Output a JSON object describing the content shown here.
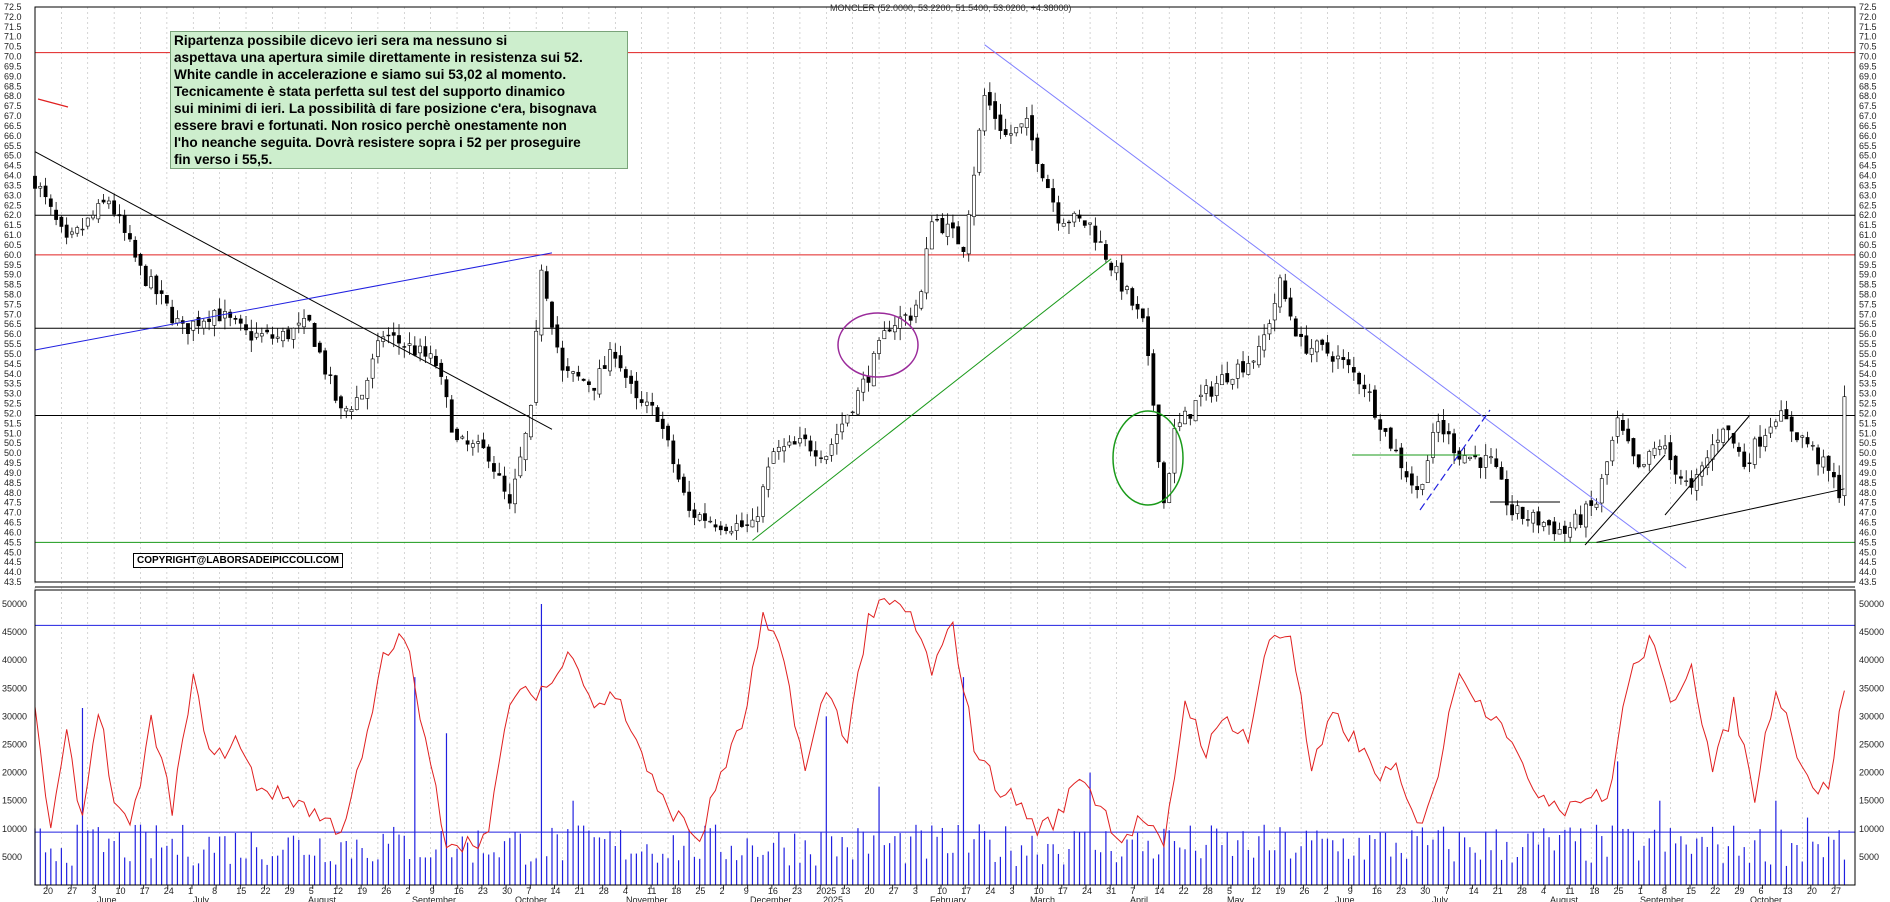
{
  "chart_data": [
    {
      "type": "candlestick",
      "title": "MONCLER (52.0000, 53.2200, 51.5400, 53.0200, +4.38000)",
      "ylim": [
        43.5,
        72.5
      ],
      "y_ticks": [
        43.5,
        44.0,
        44.5,
        45.0,
        45.5,
        46.0,
        46.5,
        47.0,
        47.5,
        48.0,
        48.5,
        49.0,
        49.5,
        50.0,
        50.5,
        51.0,
        51.5,
        52.0,
        52.5,
        53.0,
        53.5,
        54.0,
        54.5,
        55.0,
        55.5,
        56.0,
        56.5,
        57.0,
        57.5,
        58.0,
        58.5,
        59.0,
        59.5,
        60.0,
        60.5,
        61.0,
        61.5,
        62.0,
        62.5,
        63.0,
        63.5,
        64.0,
        64.5,
        65.0,
        65.5,
        66.0,
        66.5,
        67.0,
        67.5,
        68.0,
        68.5,
        69.0,
        69.5,
        70.0,
        70.5,
        71.0,
        71.5,
        72.0,
        72.5
      ],
      "x_day_labels": [
        "20",
        "27",
        "3",
        "10",
        "17",
        "24",
        "1",
        "8",
        "15",
        "22",
        "29",
        "5",
        "12",
        "19",
        "26",
        "2",
        "9",
        "16",
        "23",
        "30",
        "7",
        "14",
        "21",
        "28",
        "4",
        "11",
        "18",
        "25",
        "2",
        "9",
        "16",
        "23",
        "2025",
        "13",
        "20",
        "27",
        "3",
        "10",
        "17",
        "24",
        "3",
        "10",
        "17",
        "24",
        "31",
        "7",
        "14",
        "22",
        "28",
        "5",
        "12",
        "19",
        "26",
        "2",
        "9",
        "16",
        "23",
        "30",
        "7",
        "14",
        "21",
        "28",
        "4",
        "11",
        "18",
        "25",
        "1",
        "8",
        "15",
        "22",
        "29",
        "6",
        "13",
        "20",
        "27"
      ],
      "x_month_labels": [
        "June",
        "July",
        "August",
        "September",
        "October",
        "November",
        "December",
        "2025",
        "February",
        "March",
        "April",
        "May",
        "June",
        "July",
        "August",
        "September",
        "October"
      ],
      "horizontal_levels": [
        {
          "value": 70.2,
          "color": "#e02020"
        },
        {
          "value": 62.0,
          "color": "#000000"
        },
        {
          "value": 60.0,
          "color": "#e02020"
        },
        {
          "value": 56.3,
          "color": "#000000"
        },
        {
          "value": 51.9,
          "color": "#000000"
        },
        {
          "value": 45.5,
          "color": "#1a9a1a"
        }
      ],
      "trendlines": [
        {
          "color": "#000000",
          "from": [
            0,
            65.2
          ],
          "to": [
            98,
            51.2
          ]
        },
        {
          "color": "#2020e0",
          "from": [
            0,
            55.2
          ],
          "to": [
            98,
            60.1
          ]
        },
        {
          "color": "#1a9a1a",
          "from": [
            136,
            45.6
          ],
          "to": [
            204,
            59.8
          ]
        },
        {
          "color": "#8080ff",
          "from": [
            180,
            70.6
          ],
          "to": [
            313,
            44.2
          ]
        },
        {
          "color": "#000000",
          "from": [
            296,
            45.5
          ],
          "to": [
            343,
            48.2
          ]
        }
      ],
      "annotation_text": "Ripartenza possibile dicevo ieri sera ma nessuno si\naspettava una apertura simile direttamente in resistenza sui 52.\nWhite candle in accelerazione e siamo sui 53,02 al momento.\nTecnicamente è stata perfetta sul test del supporto dinamico\nsui minimi di ieri. La possibilità di fare posizione c'era, bisognava\nessere bravi e fortunati. Non rosico perchè onestamente non\nl'ho neanche seguita. Dovrà resistere sopra i 52 per  proseguire\nfin verso i 55,5.",
      "copyright": "COPYRIGHT@LABORSADEIPICCOLI.COM",
      "waypoints": [
        [
          0,
          63.8
        ],
        [
          6,
          60.5
        ],
        [
          14,
          62.8
        ],
        [
          20,
          59.2
        ],
        [
          28,
          56.2
        ],
        [
          34,
          57.2
        ],
        [
          40,
          56.0
        ],
        [
          46,
          55.8
        ],
        [
          52,
          56.5
        ],
        [
          58,
          52.0
        ],
        [
          62,
          53.0
        ],
        [
          66,
          56.0
        ],
        [
          72,
          55.2
        ],
        [
          76,
          54.5
        ],
        [
          80,
          50.5
        ],
        [
          86,
          50.0
        ],
        [
          90,
          47.2
        ],
        [
          94,
          52.0
        ],
        [
          96,
          59.5
        ],
        [
          100,
          54.0
        ],
        [
          106,
          53.5
        ],
        [
          110,
          55.2
        ],
        [
          114,
          52.5
        ],
        [
          118,
          52.0
        ],
        [
          124,
          47.0
        ],
        [
          130,
          46.5
        ],
        [
          136,
          46.2
        ],
        [
          140,
          50.0
        ],
        [
          146,
          50.5
        ],
        [
          150,
          50.0
        ],
        [
          158,
          54.0
        ],
        [
          162,
          56.5
        ],
        [
          166,
          57.0
        ],
        [
          168,
          58.0
        ],
        [
          170,
          62.0
        ],
        [
          176,
          60.5
        ],
        [
          180,
          68.0
        ],
        [
          184,
          66.0
        ],
        [
          188,
          66.5
        ],
        [
          194,
          62.0
        ],
        [
          200,
          61.5
        ],
        [
          206,
          58.5
        ],
        [
          210,
          56.5
        ],
        [
          212,
          52.5
        ],
        [
          214,
          47.5
        ],
        [
          216,
          51.0
        ],
        [
          220,
          52.5
        ],
        [
          226,
          54.0
        ],
        [
          232,
          55.0
        ],
        [
          236,
          58.5
        ],
        [
          240,
          55.5
        ],
        [
          246,
          55.0
        ],
        [
          252,
          53.5
        ],
        [
          256,
          51.0
        ],
        [
          262,
          48.0
        ],
        [
          266,
          51.5
        ],
        [
          270,
          50.0
        ],
        [
          276,
          49.5
        ],
        [
          280,
          47.0
        ],
        [
          286,
          46.5
        ],
        [
          290,
          46.0
        ],
        [
          296,
          47.5
        ],
        [
          300,
          51.5
        ],
        [
          304,
          49.0
        ],
        [
          308,
          50.5
        ],
        [
          314,
          48.0
        ],
        [
          320,
          51.5
        ],
        [
          324,
          49.5
        ],
        [
          330,
          52.0
        ],
        [
          336,
          50.5
        ],
        [
          340,
          49.0
        ],
        [
          342,
          48.1
        ],
        [
          343,
          53.0
        ]
      ],
      "series_note": "daily price (approximate path read from chart)"
    },
    {
      "type": "bar+line",
      "ylim": [
        0,
        52500
      ],
      "y_ticks": [
        5000,
        10000,
        15000,
        20000,
        25000,
        30000,
        35000,
        40000,
        45000,
        50000
      ],
      "horizontal_levels": [
        {
          "value": 46200,
          "color": "#2020e0"
        },
        {
          "value": 9400,
          "color": "#2020e0"
        }
      ],
      "volume_color": "#2020e0",
      "line_color": "#e02020",
      "line_waypoints": [
        [
          0,
          30000
        ],
        [
          3,
          10000
        ],
        [
          6,
          26000
        ],
        [
          9,
          12000
        ],
        [
          12,
          32000
        ],
        [
          15,
          15000
        ],
        [
          18,
          9000
        ],
        [
          22,
          29000
        ],
        [
          26,
          14000
        ],
        [
          30,
          36000
        ],
        [
          34,
          22000
        ],
        [
          38,
          26000
        ],
        [
          42,
          18000
        ],
        [
          46,
          16000
        ],
        [
          50,
          15000
        ],
        [
          54,
          12000
        ],
        [
          58,
          10000
        ],
        [
          62,
          22000
        ],
        [
          66,
          40000
        ],
        [
          70,
          45000
        ],
        [
          74,
          25000
        ],
        [
          78,
          8000
        ],
        [
          82,
          7500
        ],
        [
          86,
          9000
        ],
        [
          90,
          33000
        ],
        [
          94,
          34000
        ],
        [
          98,
          36000
        ],
        [
          102,
          42000
        ],
        [
          106,
          32000
        ],
        [
          110,
          34000
        ],
        [
          114,
          26000
        ],
        [
          118,
          16000
        ],
        [
          122,
          12000
        ],
        [
          126,
          8000
        ],
        [
          130,
          20000
        ],
        [
          134,
          28000
        ],
        [
          138,
          47000
        ],
        [
          142,
          40000
        ],
        [
          146,
          20000
        ],
        [
          150,
          35000
        ],
        [
          154,
          26000
        ],
        [
          158,
          48000
        ],
        [
          162,
          50000
        ],
        [
          166,
          48000
        ],
        [
          170,
          38000
        ],
        [
          174,
          46000
        ],
        [
          178,
          25000
        ],
        [
          182,
          18000
        ],
        [
          186,
          15000
        ],
        [
          190,
          10000
        ],
        [
          194,
          12000
        ],
        [
          198,
          20000
        ],
        [
          202,
          14000
        ],
        [
          206,
          8000
        ],
        [
          210,
          12000
        ],
        [
          214,
          6000
        ],
        [
          218,
          33000
        ],
        [
          222,
          24000
        ],
        [
          226,
          30000
        ],
        [
          230,
          26000
        ],
        [
          234,
          44000
        ],
        [
          238,
          45000
        ],
        [
          242,
          20000
        ],
        [
          246,
          30000
        ],
        [
          250,
          26000
        ],
        [
          254,
          20000
        ],
        [
          258,
          20000
        ],
        [
          262,
          10000
        ],
        [
          266,
          20000
        ],
        [
          270,
          39000
        ],
        [
          274,
          32000
        ],
        [
          278,
          30000
        ],
        [
          282,
          20000
        ],
        [
          286,
          16000
        ],
        [
          290,
          14000
        ],
        [
          294,
          16000
        ],
        [
          298,
          15000
        ],
        [
          302,
          36000
        ],
        [
          306,
          44000
        ],
        [
          310,
          32000
        ],
        [
          314,
          40000
        ],
        [
          318,
          20000
        ],
        [
          322,
          32000
        ],
        [
          326,
          16000
        ],
        [
          330,
          36000
        ],
        [
          334,
          24000
        ],
        [
          338,
          16000
        ],
        [
          340,
          18000
        ],
        [
          343,
          35500
        ]
      ],
      "volume_spikes": [
        [
          9,
          31500
        ],
        [
          72,
          37000
        ],
        [
          78,
          27000
        ],
        [
          96,
          50000
        ],
        [
          102,
          15000
        ],
        [
          150,
          30000
        ],
        [
          160,
          17500
        ],
        [
          176,
          37000
        ],
        [
          200,
          20000
        ],
        [
          214,
          10000
        ],
        [
          300,
          22000
        ],
        [
          308,
          15000
        ],
        [
          330,
          15000
        ],
        [
          336,
          12000
        ]
      ],
      "volume_base": 7500
    }
  ]
}
